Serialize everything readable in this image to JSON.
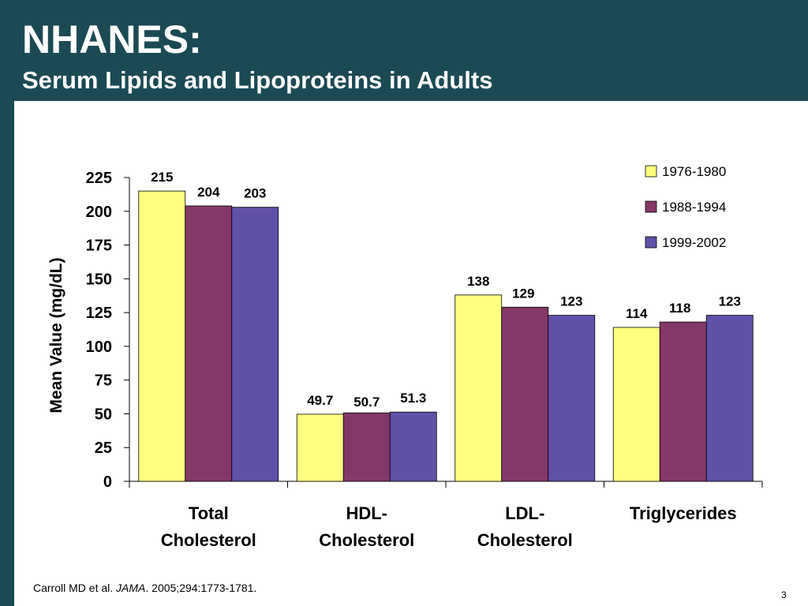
{
  "slide": {
    "title": "NHANES:",
    "subtitle": "Serum Lipids and Lipoproteins in Adults",
    "citation_authors": "Carroll MD et al. ",
    "citation_journal": "JAMA",
    "citation_details": ". 2005;294:1773-1781.",
    "page_number": "3",
    "background_color": "#1b4a54"
  },
  "chart_data": {
    "type": "bar",
    "title": "",
    "xlabel": "",
    "ylabel": "Mean Value (mg/dL)",
    "ylim": [
      0,
      225
    ],
    "yticks": [
      0,
      25,
      50,
      75,
      100,
      125,
      150,
      175,
      200,
      225
    ],
    "grid": false,
    "legend_position": "top-right",
    "categories": [
      [
        "Total",
        "Cholesterol"
      ],
      [
        "HDL-",
        "Cholesterol"
      ],
      [
        "LDL-",
        "Cholesterol"
      ],
      [
        "Triglycerides"
      ]
    ],
    "series": [
      {
        "name": "1976-1980",
        "color": "#ffff80",
        "values": [
          215,
          49.7,
          138,
          114
        ],
        "labels": [
          "215",
          "49.7",
          "138",
          "114"
        ]
      },
      {
        "name": "1988-1994",
        "color": "#843867",
        "values": [
          204,
          50.7,
          129,
          118
        ],
        "labels": [
          "204",
          "50.7",
          "129",
          "118"
        ]
      },
      {
        "name": "1999-2002",
        "color": "#6150a8",
        "values": [
          203,
          51.3,
          123,
          123
        ],
        "labels": [
          "203",
          "51.3",
          "123",
          "123"
        ]
      }
    ]
  }
}
